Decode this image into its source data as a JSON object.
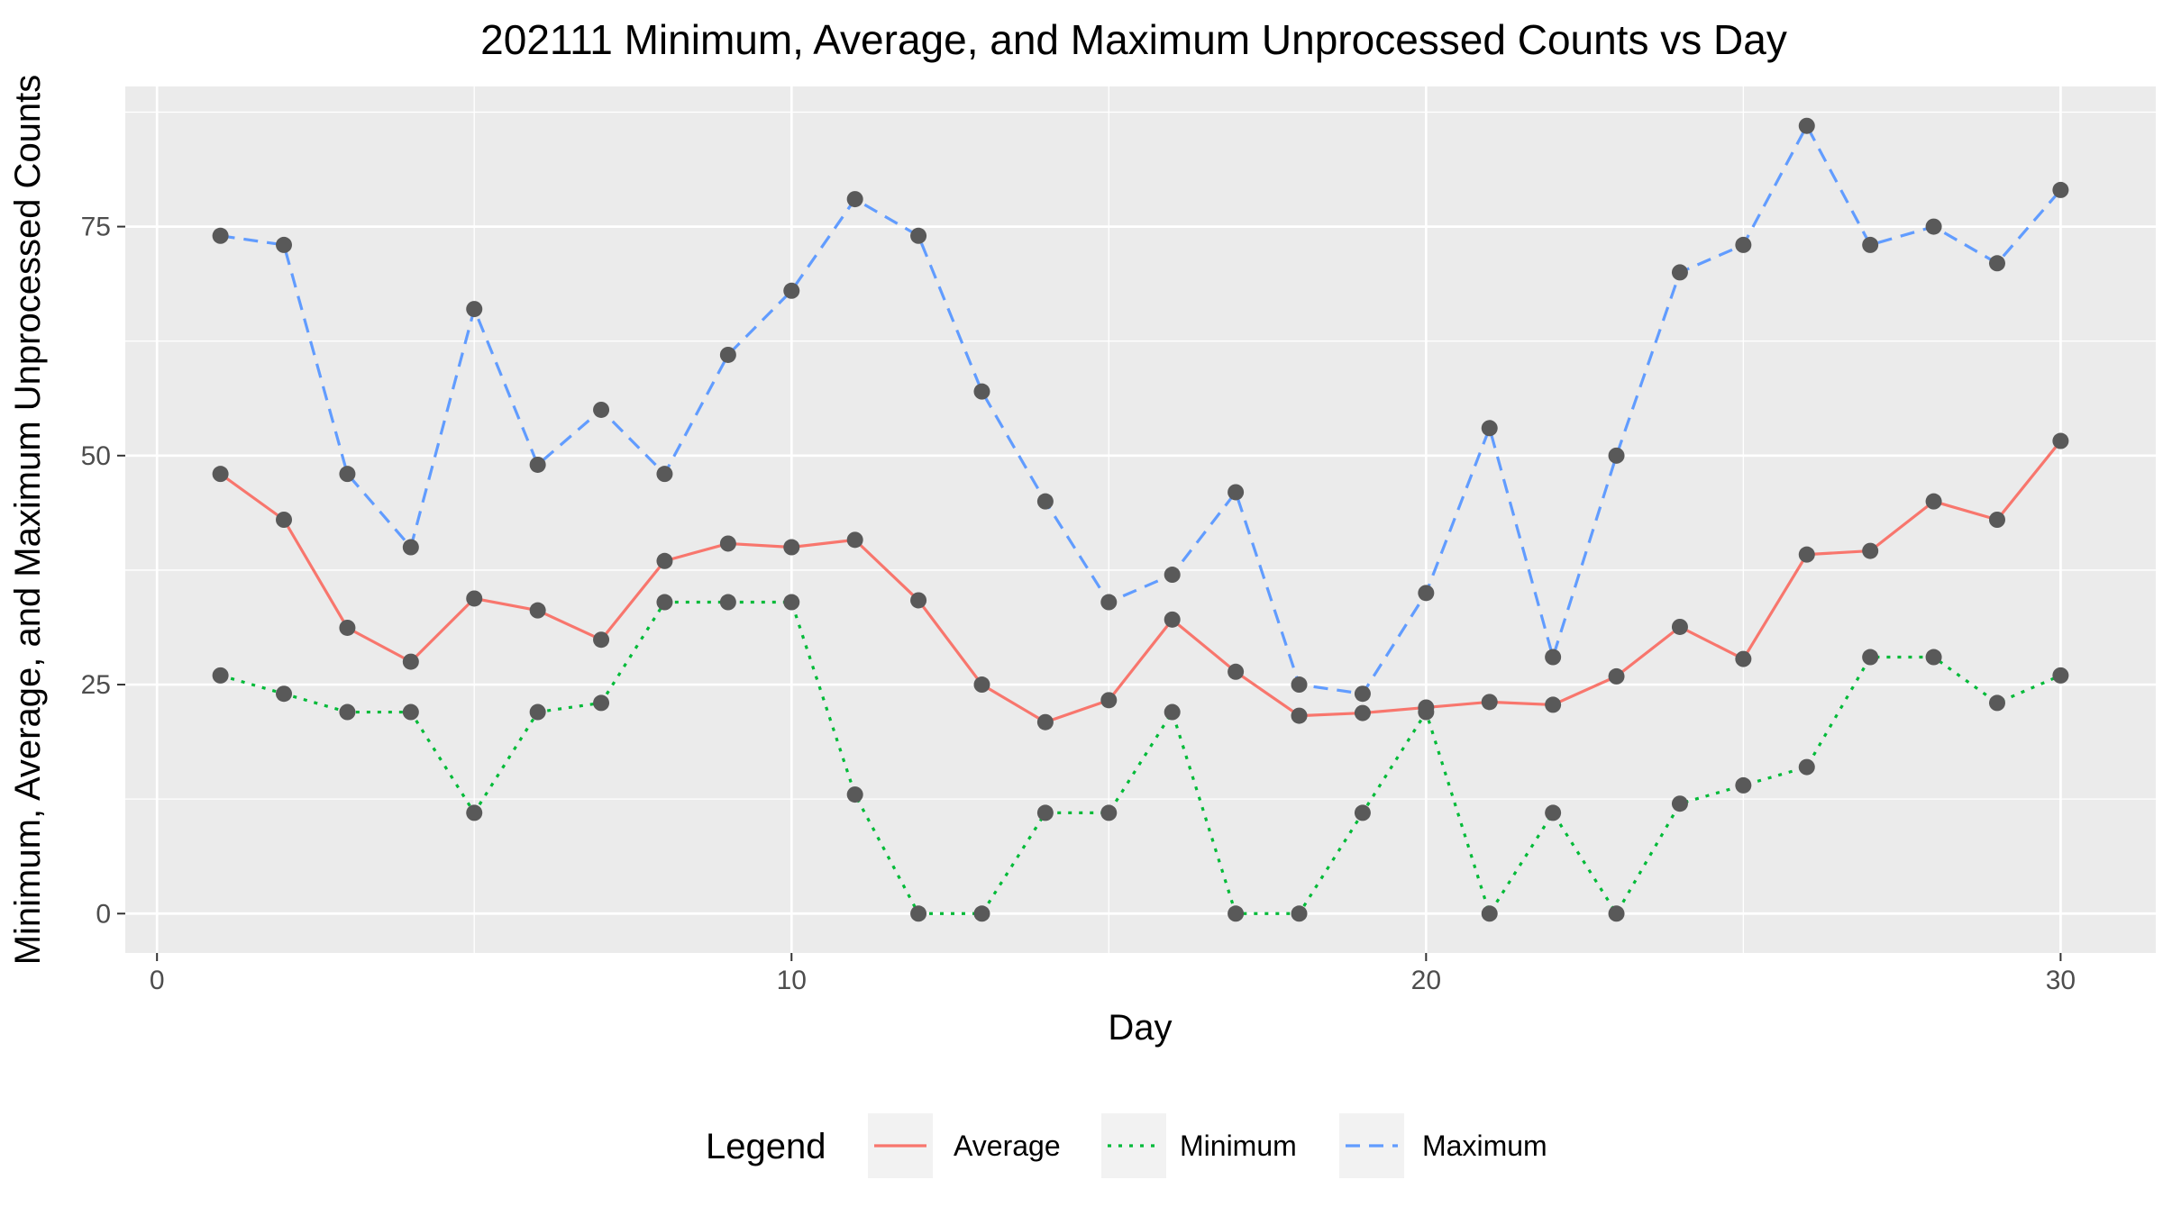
{
  "chart_data": {
    "type": "line",
    "title": "202111 Minimum, Average, and Maximum Unprocessed Counts vs Day",
    "xlabel": "Day",
    "ylabel": "Minimum, Average, and Maximum Unprocessed Counts",
    "xlim": [
      -0.5,
      31.5
    ],
    "ylim": [
      -4.3,
      90.3
    ],
    "x_ticks": [
      0,
      10,
      20,
      30
    ],
    "y_ticks": [
      0,
      25,
      50,
      75
    ],
    "grid": true,
    "legend": {
      "title": "Legend",
      "position": "bottom"
    },
    "x": [
      1,
      2,
      3,
      4,
      5,
      6,
      7,
      8,
      9,
      10,
      11,
      12,
      13,
      14,
      15,
      16,
      17,
      18,
      19,
      20,
      21,
      22,
      23,
      24,
      25,
      26,
      27,
      28,
      29,
      30
    ],
    "series": [
      {
        "name": "Average",
        "color": "#F8766D",
        "dash": "solid",
        "values": [
          48,
          43,
          31.2,
          27.5,
          34.4,
          33.1,
          29.9,
          38.5,
          40.4,
          40,
          40.8,
          34.2,
          25,
          20.9,
          23.3,
          32.1,
          26.4,
          21.6,
          21.9,
          22.5,
          23.1,
          22.8,
          25.9,
          31.3,
          27.8,
          39.2,
          39.6,
          45,
          43,
          51.6
        ]
      },
      {
        "name": "Minimum",
        "color": "#00BA38",
        "dash": "dotted",
        "values": [
          26,
          24,
          22,
          22,
          11,
          22,
          23,
          34,
          34,
          34,
          13,
          0,
          0,
          11,
          11,
          22,
          0,
          0,
          11,
          22,
          0,
          11,
          0,
          12,
          14,
          16,
          28,
          28,
          23,
          26
        ]
      },
      {
        "name": "Maximum",
        "color": "#619CFF",
        "dash": "dashed",
        "values": [
          74,
          73,
          48,
          40,
          66,
          49,
          55,
          48,
          61,
          68,
          78,
          74,
          57,
          45,
          34,
          37,
          46,
          25,
          24,
          35,
          53,
          28,
          50,
          70,
          73,
          86,
          73,
          75,
          71,
          79
        ]
      }
    ],
    "point_color": "#595959"
  }
}
